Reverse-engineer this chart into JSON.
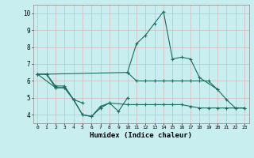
{
  "bg_color": "#c8eef0",
  "grid_color": "#d4b8b8",
  "line_color": "#1a6b5a",
  "marker": "+",
  "series1_x": [
    0,
    1,
    10,
    11,
    12,
    13,
    14,
    15,
    16,
    17,
    18,
    19,
    20
  ],
  "series1_y": [
    6.4,
    6.4,
    6.5,
    6.0,
    6.0,
    6.0,
    6.0,
    6.0,
    6.0,
    6.0,
    6.0,
    6.0,
    5.5
  ],
  "series2_x": [
    0,
    1,
    2,
    3,
    4,
    5,
    6,
    7,
    8,
    9,
    10
  ],
  "series2_y": [
    6.4,
    6.4,
    5.7,
    5.7,
    4.9,
    4.0,
    3.9,
    4.5,
    4.7,
    4.2,
    5.0
  ],
  "series3_x": [
    0,
    2,
    3,
    4,
    5
  ],
  "series3_y": [
    6.4,
    5.6,
    5.6,
    4.9,
    4.7
  ],
  "series4_x": [
    0,
    1,
    2,
    3,
    4,
    5,
    6,
    7,
    8,
    10,
    11,
    12,
    13,
    14,
    15,
    16,
    17,
    18,
    19,
    20,
    21,
    22,
    23
  ],
  "series4_y": [
    6.4,
    6.4,
    5.6,
    5.6,
    4.9,
    4.0,
    3.9,
    4.4,
    4.7,
    4.6,
    4.6,
    4.6,
    4.6,
    4.6,
    4.6,
    4.6,
    4.5,
    4.4,
    4.4,
    4.4,
    4.4,
    4.4,
    4.4
  ],
  "series5_x": [
    10,
    11,
    12,
    13,
    14,
    15,
    16,
    17,
    18,
    20,
    21,
    22,
    23
  ],
  "series5_y": [
    6.5,
    8.2,
    8.7,
    9.4,
    10.1,
    7.3,
    7.4,
    7.3,
    6.2,
    5.5,
    4.9,
    4.4,
    4.4
  ],
  "xlim": [
    -0.5,
    23.5
  ],
  "ylim": [
    3.5,
    10.5
  ],
  "yticks": [
    4,
    5,
    6,
    7,
    8,
    9,
    10
  ],
  "xtick_labels": [
    "0",
    "1",
    "2",
    "3",
    "4",
    "5",
    "6",
    "7",
    "8",
    "9",
    "10",
    "11",
    "12",
    "13",
    "14",
    "15",
    "16",
    "17",
    "18",
    "19",
    "20",
    "21",
    "22",
    "23"
  ],
  "xlabel": "Humidex (Indice chaleur)"
}
